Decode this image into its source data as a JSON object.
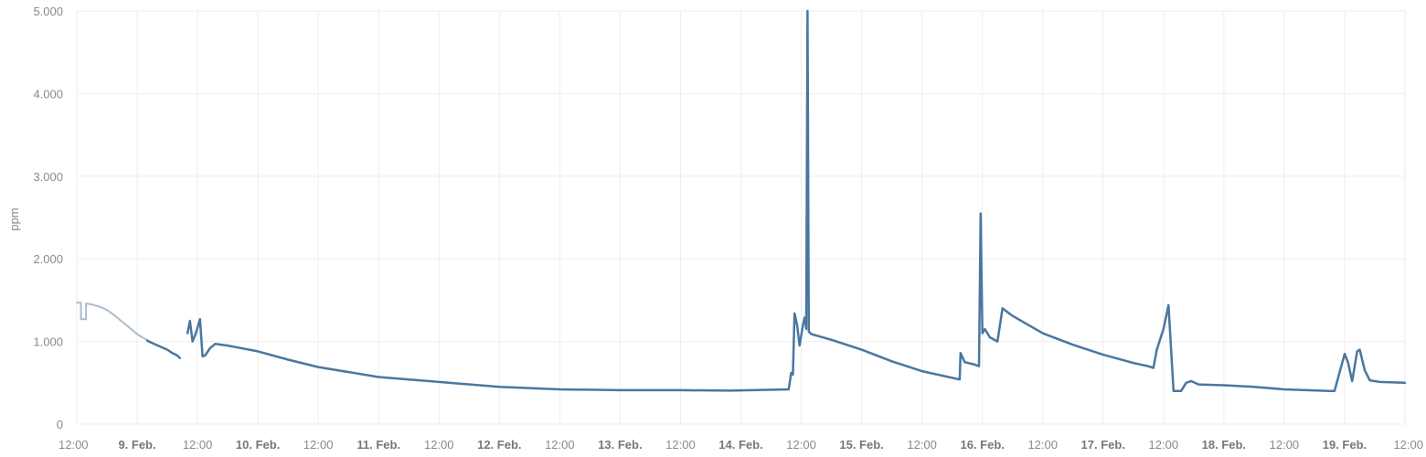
{
  "chart_data": {
    "type": "line",
    "title": "",
    "ylabel": "ppm",
    "xlabel": "",
    "ylim": [
      0,
      5000
    ],
    "yticks": [
      {
        "value": 0,
        "label": "0"
      },
      {
        "value": 1000,
        "label": "1.000"
      },
      {
        "value": 2000,
        "label": "2.000"
      },
      {
        "value": 3000,
        "label": "3.000"
      },
      {
        "value": 4000,
        "label": "4.000"
      },
      {
        "value": 5000,
        "label": "5.000"
      }
    ],
    "xlim": [
      "2025-02-08T12:00",
      "2025-02-19T12:00"
    ],
    "xticks": [
      {
        "value": "2025-02-08T12:00",
        "label": "12:00",
        "bold": false
      },
      {
        "value": "2025-02-09T00:00",
        "label": "9. Feb.",
        "bold": true
      },
      {
        "value": "2025-02-09T12:00",
        "label": "12:00",
        "bold": false
      },
      {
        "value": "2025-02-10T00:00",
        "label": "10. Feb.",
        "bold": true
      },
      {
        "value": "2025-02-10T12:00",
        "label": "12:00",
        "bold": false
      },
      {
        "value": "2025-02-11T00:00",
        "label": "11. Feb.",
        "bold": true
      },
      {
        "value": "2025-02-11T12:00",
        "label": "12:00",
        "bold": false
      },
      {
        "value": "2025-02-12T00:00",
        "label": "12. Feb.",
        "bold": true
      },
      {
        "value": "2025-02-12T12:00",
        "label": "12:00",
        "bold": false
      },
      {
        "value": "2025-02-13T00:00",
        "label": "13. Feb.",
        "bold": true
      },
      {
        "value": "2025-02-13T12:00",
        "label": "12:00",
        "bold": false
      },
      {
        "value": "2025-02-14T00:00",
        "label": "14. Feb.",
        "bold": true
      },
      {
        "value": "2025-02-14T12:00",
        "label": "12:00",
        "bold": false
      },
      {
        "value": "2025-02-15T00:00",
        "label": "15. Feb.",
        "bold": true
      },
      {
        "value": "2025-02-15T12:00",
        "label": "12:00",
        "bold": false
      },
      {
        "value": "2025-02-16T00:00",
        "label": "16. Feb.",
        "bold": true
      },
      {
        "value": "2025-02-16T12:00",
        "label": "12:00",
        "bold": false
      },
      {
        "value": "2025-02-17T00:00",
        "label": "17. Feb.",
        "bold": true
      },
      {
        "value": "2025-02-17T12:00",
        "label": "12:00",
        "bold": false
      },
      {
        "value": "2025-02-18T00:00",
        "label": "18. Feb.",
        "bold": true
      },
      {
        "value": "2025-02-18T12:00",
        "label": "12:00",
        "bold": false
      },
      {
        "value": "2025-02-19T00:00",
        "label": "19. Feb.",
        "bold": true
      },
      {
        "value": "2025-02-19T12:00",
        "label": "12:00",
        "bold": false
      }
    ],
    "grid": true,
    "legend": "none",
    "series": [
      {
        "color": "#a9bdd0",
        "step": true,
        "points": [
          [
            "2025-02-08T12:00",
            1470
          ],
          [
            "2025-02-08T12:50",
            1470
          ],
          [
            "2025-02-08T12:50",
            1270
          ],
          [
            "2025-02-08T13:50",
            1270
          ],
          [
            "2025-02-08T13:50",
            1460
          ],
          [
            "2025-02-08T14:50",
            1450
          ],
          [
            "2025-02-08T16:00",
            1430
          ],
          [
            "2025-02-08T17:00",
            1410
          ],
          [
            "2025-02-08T18:00",
            1380
          ],
          [
            "2025-02-08T19:00",
            1340
          ],
          [
            "2025-02-08T20:00",
            1290
          ],
          [
            "2025-02-08T21:00",
            1240
          ],
          [
            "2025-02-08T22:00",
            1190
          ],
          [
            "2025-02-08T23:00",
            1140
          ],
          [
            "2025-02-09T00:00",
            1090
          ],
          [
            "2025-02-09T01:00",
            1050
          ],
          [
            "2025-02-09T02:00",
            1020
          ]
        ]
      },
      {
        "color": "#4a76a0",
        "step": false,
        "points": [
          [
            "2025-02-09T02:00",
            1010
          ],
          [
            "2025-02-09T03:00",
            980
          ],
          [
            "2025-02-09T04:30",
            940
          ],
          [
            "2025-02-09T06:00",
            900
          ],
          [
            "2025-02-09T07:00",
            860
          ],
          [
            "2025-02-09T08:00",
            830
          ],
          [
            "2025-02-09T08:30",
            800
          ]
        ]
      },
      {
        "color": "#4a76a0",
        "step": false,
        "points": [
          [
            "2025-02-09T10:00",
            1100
          ],
          [
            "2025-02-09T10:30",
            1250
          ],
          [
            "2025-02-09T11:00",
            1000
          ],
          [
            "2025-02-09T11:40",
            1100
          ],
          [
            "2025-02-09T12:30",
            1270
          ],
          [
            "2025-02-09T13:00",
            820
          ],
          [
            "2025-02-09T13:30",
            830
          ],
          [
            "2025-02-09T14:30",
            920
          ],
          [
            "2025-02-09T15:30",
            970
          ],
          [
            "2025-02-09T18:00",
            950
          ],
          [
            "2025-02-10T00:00",
            880
          ],
          [
            "2025-02-10T06:00",
            780
          ],
          [
            "2025-02-10T12:00",
            690
          ],
          [
            "2025-02-11T00:00",
            570
          ],
          [
            "2025-02-11T12:00",
            510
          ],
          [
            "2025-02-12T00:00",
            450
          ],
          [
            "2025-02-12T12:00",
            420
          ],
          [
            "2025-02-13T00:00",
            410
          ],
          [
            "2025-02-13T12:00",
            410
          ],
          [
            "2025-02-13T22:00",
            405
          ],
          [
            "2025-02-14T09:30",
            420
          ],
          [
            "2025-02-14T10:00",
            620
          ],
          [
            "2025-02-14T10:20",
            600
          ],
          [
            "2025-02-14T10:40",
            1340
          ],
          [
            "2025-02-14T11:10",
            1200
          ],
          [
            "2025-02-14T11:40",
            950
          ],
          [
            "2025-02-14T12:20",
            1200
          ],
          [
            "2025-02-14T12:40",
            1290
          ],
          [
            "2025-02-14T13:00",
            1150
          ],
          [
            "2025-02-14T13:15",
            5000
          ],
          [
            "2025-02-14T13:30",
            1120
          ],
          [
            "2025-02-14T14:00",
            1090
          ],
          [
            "2025-02-14T18:00",
            1020
          ],
          [
            "2025-02-15T00:00",
            900
          ],
          [
            "2025-02-15T06:00",
            760
          ],
          [
            "2025-02-15T12:00",
            640
          ],
          [
            "2025-02-15T18:00",
            560
          ],
          [
            "2025-02-15T19:30",
            540
          ],
          [
            "2025-02-15T19:40",
            860
          ],
          [
            "2025-02-15T20:30",
            750
          ],
          [
            "2025-02-15T22:30",
            720
          ],
          [
            "2025-02-15T23:20",
            700
          ],
          [
            "2025-02-15T23:40",
            2550
          ],
          [
            "2025-02-16T00:00",
            1100
          ],
          [
            "2025-02-16T00:30",
            1150
          ],
          [
            "2025-02-16T01:30",
            1050
          ],
          [
            "2025-02-16T03:00",
            1000
          ],
          [
            "2025-02-16T04:00",
            1400
          ],
          [
            "2025-02-16T06:00",
            1310
          ],
          [
            "2025-02-16T12:00",
            1100
          ],
          [
            "2025-02-16T18:00",
            960
          ],
          [
            "2025-02-17T00:00",
            840
          ],
          [
            "2025-02-17T06:00",
            740
          ],
          [
            "2025-02-17T09:00",
            700
          ],
          [
            "2025-02-17T10:00",
            680
          ],
          [
            "2025-02-17T10:40",
            900
          ],
          [
            "2025-02-17T12:00",
            1150
          ],
          [
            "2025-02-17T13:00",
            1440
          ],
          [
            "2025-02-17T14:00",
            400
          ],
          [
            "2025-02-17T15:30",
            400
          ],
          [
            "2025-02-17T16:30",
            500
          ],
          [
            "2025-02-17T17:30",
            520
          ],
          [
            "2025-02-17T19:00",
            480
          ],
          [
            "2025-02-18T00:00",
            470
          ],
          [
            "2025-02-18T06:00",
            450
          ],
          [
            "2025-02-18T12:00",
            420
          ],
          [
            "2025-02-18T21:00",
            400
          ],
          [
            "2025-02-18T22:00",
            400
          ],
          [
            "2025-02-19T00:00",
            850
          ],
          [
            "2025-02-19T00:40",
            750
          ],
          [
            "2025-02-19T01:30",
            520
          ],
          [
            "2025-02-19T02:30",
            880
          ],
          [
            "2025-02-19T03:00",
            900
          ],
          [
            "2025-02-19T04:00",
            650
          ],
          [
            "2025-02-19T05:00",
            530
          ],
          [
            "2025-02-19T07:00",
            510
          ],
          [
            "2025-02-19T11:59",
            500
          ]
        ]
      }
    ]
  }
}
